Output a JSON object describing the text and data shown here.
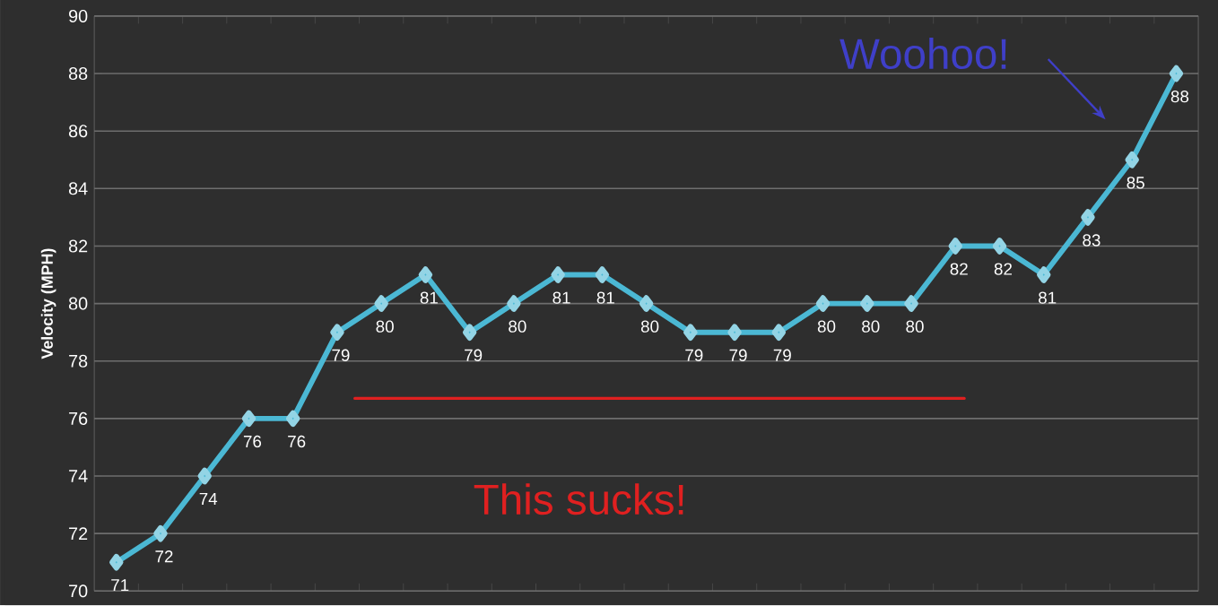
{
  "chart_data": {
    "type": "line",
    "ylabel": "Velocity (MPH)",
    "categories": [
      null,
      null,
      null,
      null,
      null,
      null,
      null,
      null,
      null,
      null,
      null,
      null,
      null,
      null,
      null,
      null,
      null,
      null,
      null,
      null,
      null,
      null,
      null,
      null,
      null
    ],
    "values": [
      71,
      72,
      74,
      76,
      76,
      79,
      80,
      81,
      79,
      80,
      81,
      81,
      80,
      79,
      79,
      79,
      80,
      80,
      80,
      82,
      82,
      81,
      83,
      85,
      88
    ],
    "color": "#4bb8d4",
    "marker": "diamond",
    "data_labels": true,
    "ylim": [
      70,
      90
    ],
    "yticks": [
      70,
      72,
      74,
      76,
      78,
      80,
      82,
      84,
      86,
      88,
      90
    ],
    "grid": "y",
    "ref_lines": [
      {
        "axis": "y",
        "value": 76.7,
        "label": "This sucks!",
        "color": "#e02020"
      }
    ],
    "annotations": [
      "Woohoo!"
    ]
  }
}
